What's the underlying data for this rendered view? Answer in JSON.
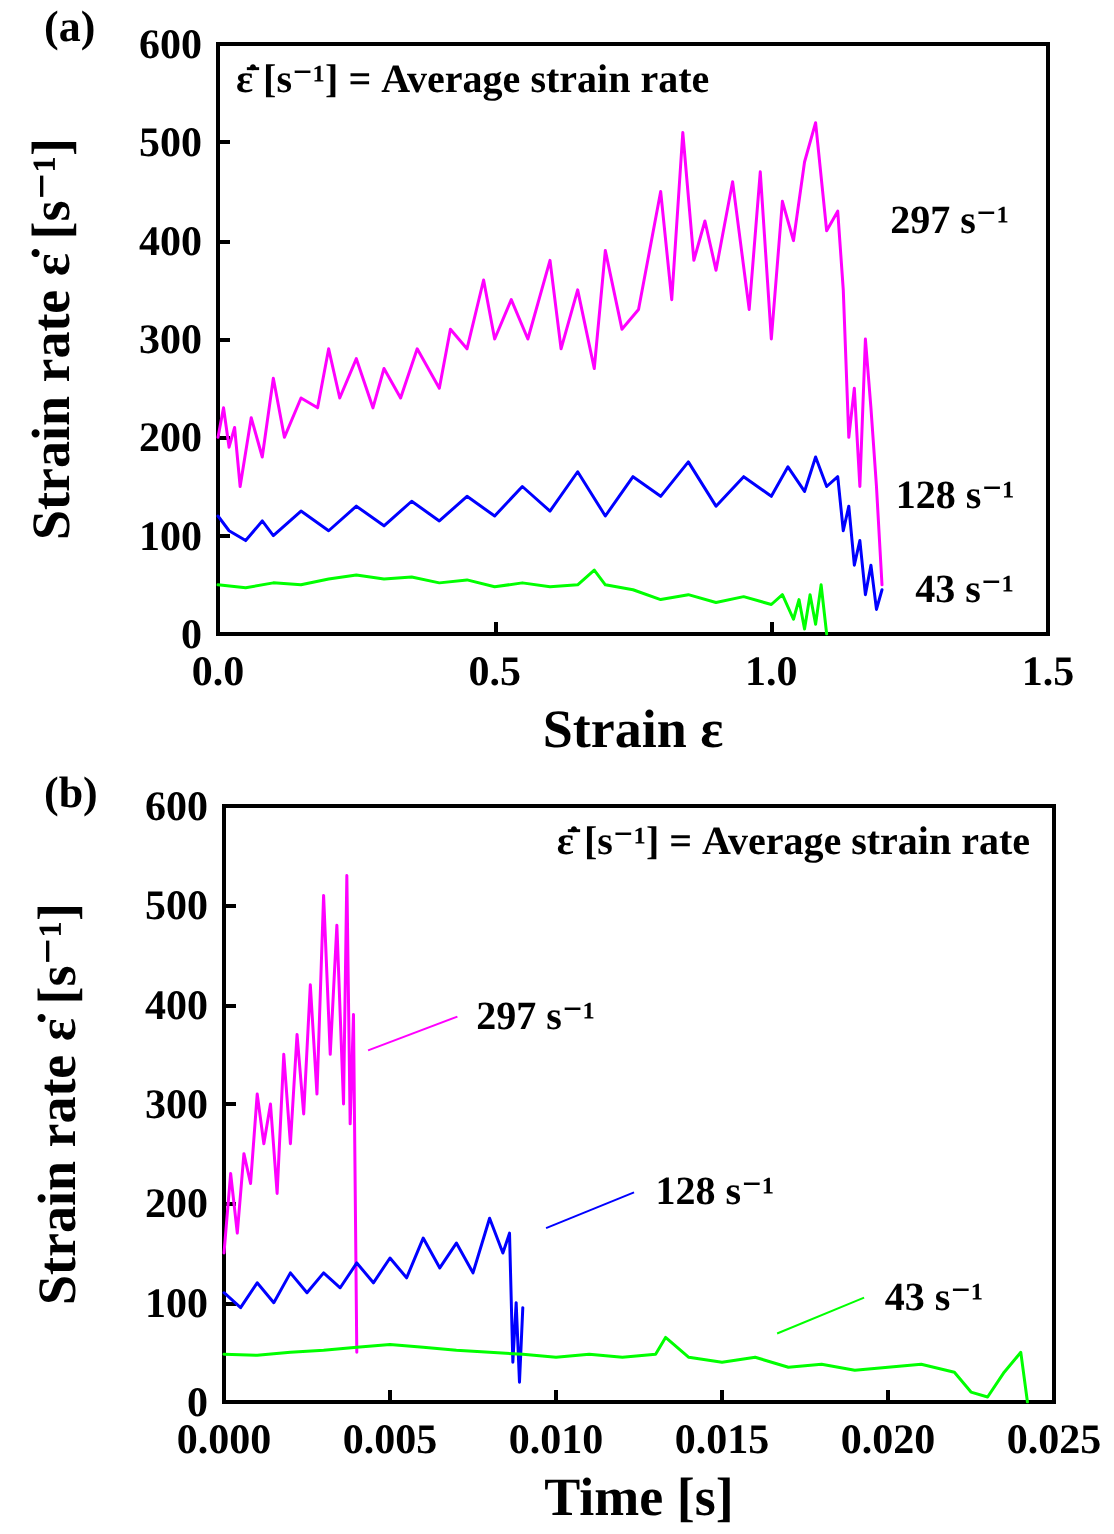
{
  "chart_data": [
    {
      "type": "line",
      "xlabel": "Strain ε",
      "ylabel": "Strain rate ε̇ [s⁻¹]",
      "annotations": [
        "(a)",
        "ε̇̄ [s⁻¹] = Average strain rate"
      ],
      "xlim": [
        0,
        1.5
      ],
      "xticks": [
        {
          "value": 0,
          "label": "0.0"
        },
        {
          "value": 0.5,
          "label": "0.5"
        },
        {
          "value": 1,
          "label": "1.0"
        },
        {
          "value": 1.5,
          "label": "1.5"
        }
      ],
      "ylim": [
        0,
        600
      ],
      "yticks": [
        0,
        100,
        200,
        300,
        400,
        500,
        600
      ],
      "grid": false,
      "legend": false,
      "marker": "none",
      "line_style": "solid",
      "series": [
        {
          "name": "297 s⁻¹",
          "color": "#ff00ff",
          "x": [
            0,
            0.01,
            0.02,
            0.03,
            0.04,
            0.06,
            0.08,
            0.1,
            0.12,
            0.15,
            0.18,
            0.2,
            0.22,
            0.25,
            0.28,
            0.3,
            0.33,
            0.36,
            0.4,
            0.42,
            0.45,
            0.48,
            0.5,
            0.53,
            0.56,
            0.6,
            0.62,
            0.65,
            0.68,
            0.7,
            0.73,
            0.76,
            0.8,
            0.82,
            0.84,
            0.86,
            0.88,
            0.9,
            0.93,
            0.96,
            0.98,
            1.0,
            1.02,
            1.04,
            1.06,
            1.08,
            1.1,
            1.12,
            1.13,
            1.14,
            1.15,
            1.16,
            1.17,
            1.18,
            1.19,
            1.2
          ],
          "values": [
            200,
            230,
            190,
            210,
            150,
            220,
            180,
            260,
            200,
            240,
            230,
            290,
            240,
            280,
            230,
            270,
            240,
            290,
            250,
            310,
            290,
            360,
            300,
            340,
            300,
            380,
            290,
            350,
            270,
            390,
            310,
            330,
            450,
            340,
            510,
            380,
            420,
            370,
            460,
            330,
            470,
            300,
            440,
            400,
            480,
            520,
            410,
            430,
            350,
            200,
            250,
            150,
            300,
            230,
            150,
            50
          ]
        },
        {
          "name": "128 s⁻¹",
          "color": "#0000ff",
          "x": [
            0,
            0.02,
            0.05,
            0.08,
            0.1,
            0.15,
            0.2,
            0.25,
            0.3,
            0.35,
            0.4,
            0.45,
            0.5,
            0.55,
            0.6,
            0.65,
            0.7,
            0.75,
            0.8,
            0.85,
            0.9,
            0.95,
            1.0,
            1.03,
            1.06,
            1.08,
            1.1,
            1.12,
            1.13,
            1.14,
            1.15,
            1.16,
            1.17,
            1.18,
            1.19,
            1.2
          ],
          "values": [
            120,
            105,
            95,
            115,
            100,
            125,
            105,
            130,
            110,
            135,
            115,
            140,
            120,
            150,
            125,
            165,
            120,
            160,
            140,
            175,
            130,
            160,
            140,
            170,
            145,
            180,
            150,
            160,
            105,
            130,
            70,
            95,
            40,
            70,
            25,
            45
          ]
        },
        {
          "name": "43 s⁻¹",
          "color": "#00ff00",
          "x": [
            0,
            0.05,
            0.1,
            0.15,
            0.2,
            0.25,
            0.3,
            0.35,
            0.4,
            0.45,
            0.5,
            0.55,
            0.6,
            0.65,
            0.68,
            0.7,
            0.75,
            0.8,
            0.85,
            0.9,
            0.95,
            1.0,
            1.02,
            1.04,
            1.05,
            1.06,
            1.07,
            1.08,
            1.09,
            1.1
          ],
          "values": [
            50,
            47,
            52,
            50,
            56,
            60,
            56,
            58,
            52,
            55,
            48,
            52,
            48,
            50,
            65,
            50,
            45,
            35,
            40,
            32,
            38,
            30,
            40,
            15,
            35,
            5,
            40,
            10,
            50,
            0
          ]
        }
      ]
    },
    {
      "type": "line",
      "xlabel": "Time [s]",
      "ylabel": "Strain rate ε̇ [s⁻¹]",
      "annotations": [
        "(b)",
        "ε̇̄ [s⁻¹] = Average strain rate"
      ],
      "xlim": [
        0,
        0.025
      ],
      "xticks": [
        {
          "value": 0,
          "label": "0.000"
        },
        {
          "value": 0.005,
          "label": "0.005"
        },
        {
          "value": 0.01,
          "label": "0.010"
        },
        {
          "value": 0.015,
          "label": "0.015"
        },
        {
          "value": 0.02,
          "label": "0.020"
        },
        {
          "value": 0.025,
          "label": "0.025"
        }
      ],
      "ylim": [
        0,
        600
      ],
      "yticks": [
        0,
        100,
        200,
        300,
        400,
        500,
        600
      ],
      "grid": false,
      "legend": "right",
      "marker": "none",
      "line_style": "solid",
      "series": [
        {
          "name": "297 s⁻¹",
          "color": "#ff00ff",
          "x": [
            0,
            0.0002,
            0.0004,
            0.0006,
            0.0008,
            0.001,
            0.0012,
            0.0014,
            0.0016,
            0.0018,
            0.002,
            0.0022,
            0.0024,
            0.0026,
            0.0028,
            0.003,
            0.0032,
            0.0034,
            0.0036,
            0.0037,
            0.0038,
            0.0039,
            0.004
          ],
          "values": [
            150,
            230,
            170,
            250,
            220,
            310,
            260,
            300,
            210,
            350,
            260,
            370,
            290,
            420,
            310,
            510,
            350,
            480,
            300,
            530,
            280,
            390,
            50
          ]
        },
        {
          "name": "128 s⁻¹",
          "color": "#0000ff",
          "x": [
            0,
            0.0005,
            0.001,
            0.0015,
            0.002,
            0.0025,
            0.003,
            0.0035,
            0.004,
            0.0045,
            0.005,
            0.0055,
            0.006,
            0.0065,
            0.007,
            0.0075,
            0.008,
            0.0084,
            0.0086,
            0.0087,
            0.0088,
            0.0089,
            0.009
          ],
          "values": [
            110,
            95,
            120,
            100,
            130,
            110,
            130,
            115,
            140,
            120,
            145,
            125,
            165,
            135,
            160,
            130,
            185,
            150,
            170,
            40,
            100,
            20,
            95
          ]
        },
        {
          "name": "43 s⁻¹",
          "color": "#00ff00",
          "x": [
            0,
            0.001,
            0.002,
            0.003,
            0.004,
            0.005,
            0.006,
            0.007,
            0.008,
            0.009,
            0.01,
            0.011,
            0.012,
            0.013,
            0.0133,
            0.014,
            0.015,
            0.016,
            0.017,
            0.018,
            0.019,
            0.02,
            0.021,
            0.022,
            0.0225,
            0.023,
            0.0235,
            0.024,
            0.0242
          ],
          "values": [
            48,
            47,
            50,
            52,
            55,
            58,
            55,
            52,
            50,
            48,
            45,
            48,
            45,
            48,
            65,
            45,
            40,
            45,
            35,
            38,
            32,
            35,
            38,
            30,
            10,
            5,
            30,
            50,
            0
          ]
        }
      ]
    }
  ]
}
